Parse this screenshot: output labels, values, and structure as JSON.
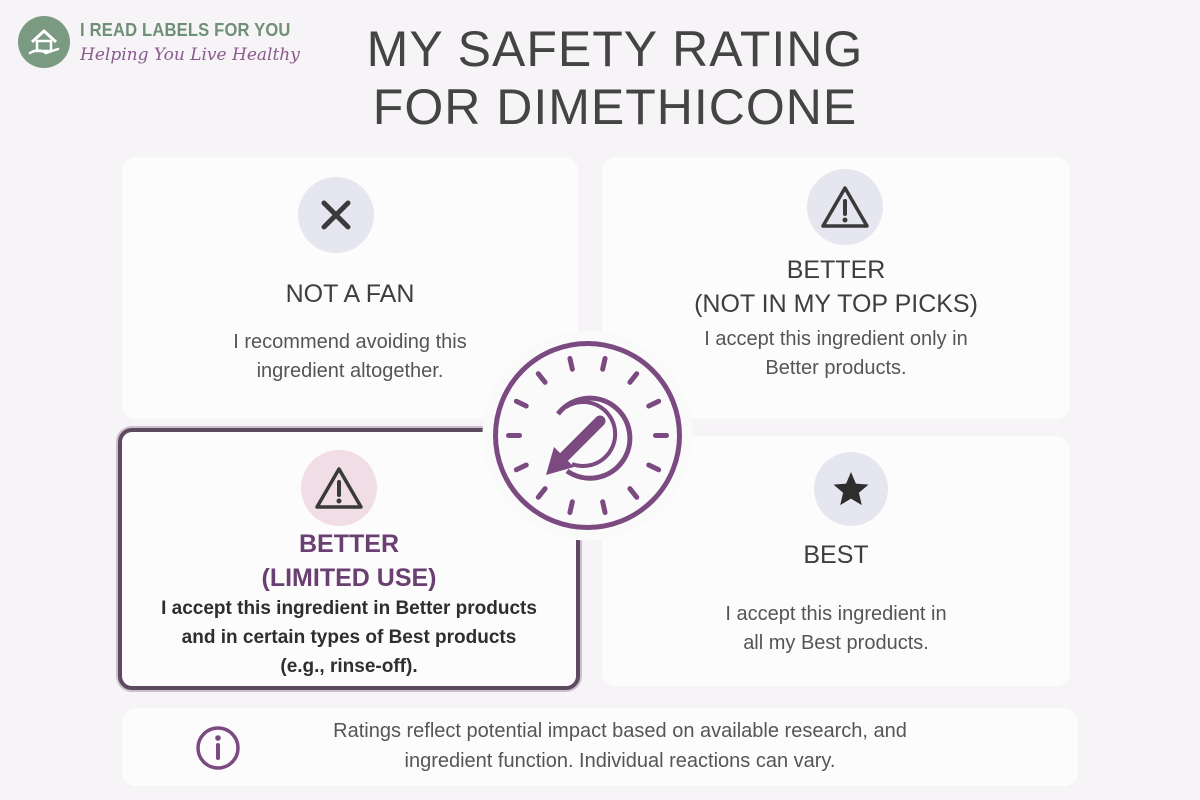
{
  "brand": {
    "name": "I READ LABELS FOR YOU",
    "tagline": "Helping You Live Healthy"
  },
  "title": {
    "line1": "MY SAFETY RATING",
    "line2": "FOR DIMETHICONE"
  },
  "ratings": {
    "not_a_fan": {
      "icon": "x-icon",
      "title": "NOT A FAN",
      "desc_line1": "I recommend avoiding this",
      "desc_line2": "ingredient altogether."
    },
    "better_top_picks": {
      "icon": "warning-icon",
      "title_line1": "BETTER",
      "title_line2": "(NOT IN MY TOP PICKS)",
      "desc_line1": "I accept this ingredient only in",
      "desc_line2": "Better products."
    },
    "better_limited": {
      "icon": "warning-icon",
      "selected": true,
      "title_line1": "BETTER",
      "title_line2": "(LIMITED USE)",
      "desc_line1": "I accept this ingredient in Better products",
      "desc_line2": "and in certain types of Best products",
      "desc_line3": "(e.g., rinse-off)."
    },
    "best": {
      "icon": "star-icon",
      "title": "BEST",
      "desc_line1": "I accept this ingredient in",
      "desc_line2": "all my Best products."
    }
  },
  "dial": {
    "icon": "dial-gauge-icon",
    "pointing_to": "better_limited"
  },
  "footer": {
    "icon": "info-icon",
    "line1": "Ratings reflect potential impact based on available research, and",
    "line2": "ingredient function. Individual reactions can vary."
  },
  "colors": {
    "accent": "#7a4a80",
    "brand_green": "#6f8f76",
    "icon_bg": "#e6e6f0",
    "selected_icon_bg": "#f1dde6"
  }
}
